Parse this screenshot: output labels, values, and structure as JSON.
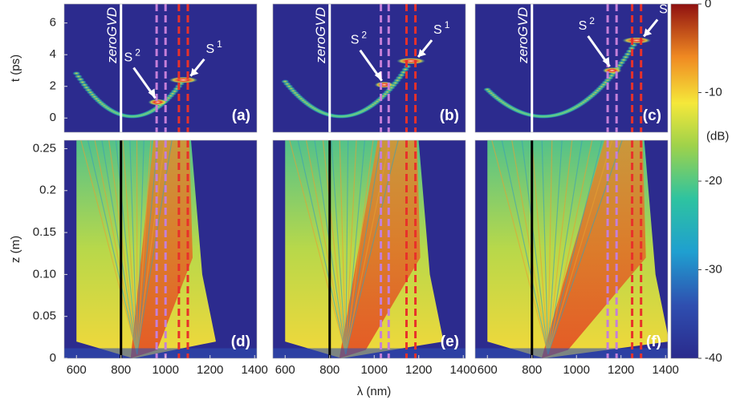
{
  "chart_data": [
    {
      "type": "heatmap",
      "ylabel": "t (ps)",
      "ylim": [
        -0.9,
        7.2
      ],
      "yticks": [
        0,
        2,
        4,
        6
      ],
      "xlim": [
        545,
        1410
      ],
      "panel_label": "(a)",
      "zero_gvd": {
        "label": "zeroGVD",
        "x": 800
      },
      "guides": [
        {
          "color": "#c57fd8",
          "x": [
            960,
            1000
          ]
        },
        {
          "color": "#e8312a",
          "x": [
            1060,
            1100
          ]
        }
      ],
      "peaks": {
        "x": [
          965,
          1080
        ],
        "values": [
          1.0,
          2.4
        ]
      },
      "annotations": [
        {
          "text": "S",
          "sub": "2"
        },
        {
          "text": "S",
          "sub": "1"
        }
      ]
    },
    {
      "type": "heatmap",
      "ylim": [
        -0.9,
        7.2
      ],
      "xlim": [
        545,
        1410
      ],
      "panel_label": "(b)",
      "zero_gvd": {
        "label": "zeroGVD",
        "x": 800
      },
      "guides": [
        {
          "color": "#c57fd8",
          "x": [
            1030,
            1065
          ]
        },
        {
          "color": "#e8312a",
          "x": [
            1145,
            1185
          ]
        }
      ],
      "peaks": {
        "x": [
          1045,
          1165
        ],
        "values": [
          2.1,
          3.6
        ]
      },
      "annotations": [
        {
          "text": "S",
          "sub": "2"
        },
        {
          "text": "S",
          "sub": "1"
        }
      ]
    },
    {
      "type": "heatmap",
      "ylim": [
        -0.9,
        7.2
      ],
      "xlim": [
        545,
        1410
      ],
      "panel_label": "(c)",
      "zero_gvd": {
        "label": "zeroGVD",
        "x": 800
      },
      "guides": [
        {
          "color": "#c57fd8",
          "x": [
            1140,
            1180
          ]
        },
        {
          "color": "#e8312a",
          "x": [
            1250,
            1290
          ]
        }
      ],
      "peaks": {
        "x": [
          1160,
          1270
        ],
        "values": [
          3.0,
          4.9
        ]
      },
      "annotations": [
        {
          "text": "S",
          "sub": "2"
        },
        {
          "text": "S",
          "sub": "1"
        }
      ]
    },
    {
      "type": "heatmap",
      "ylabel": "z (m)",
      "ylim": [
        0,
        0.26
      ],
      "yticks": [
        0,
        0.05,
        {
          "value": 0.1,
          "label": "0.10"
        },
        0.15,
        0.2,
        0.25
      ],
      "xlim": [
        545,
        1410
      ],
      "xticks": [
        600,
        800,
        1000,
        1200,
        1400
      ],
      "panel_label": "(d)",
      "zero_gvd": {
        "x": 800
      },
      "guides": [
        {
          "color": "#c57fd8",
          "x": [
            960,
            1000
          ]
        },
        {
          "color": "#e8312a",
          "x": [
            1060,
            1100
          ]
        }
      ]
    },
    {
      "type": "heatmap",
      "ylim": [
        0,
        0.26
      ],
      "xlim": [
        545,
        1410
      ],
      "xticks": [
        600,
        800,
        1000,
        1200,
        1400
      ],
      "xlabel": "λ (nm)",
      "panel_label": "(e)",
      "zero_gvd": {
        "x": 800
      },
      "guides": [
        {
          "color": "#c57fd8",
          "x": [
            1030,
            1065
          ]
        },
        {
          "color": "#e8312a",
          "x": [
            1145,
            1185
          ]
        }
      ]
    },
    {
      "type": "heatmap",
      "ylim": [
        0,
        0.26
      ],
      "xlim": [
        545,
        1410
      ],
      "xticks": [
        600,
        800,
        1000,
        1200,
        1400
      ],
      "panel_label": "(f)",
      "zero_gvd": {
        "x": 800
      },
      "guides": [
        {
          "color": "#c57fd8",
          "x": [
            1140,
            1180
          ]
        },
        {
          "color": "#e8312a",
          "x": [
            1250,
            1290
          ]
        }
      ]
    },
    {
      "type": "colorbar",
      "zlim": [
        -40,
        0
      ],
      "ticks": [
        0,
        -10,
        -20,
        -30,
        -40
      ],
      "label": "(dB)"
    }
  ]
}
